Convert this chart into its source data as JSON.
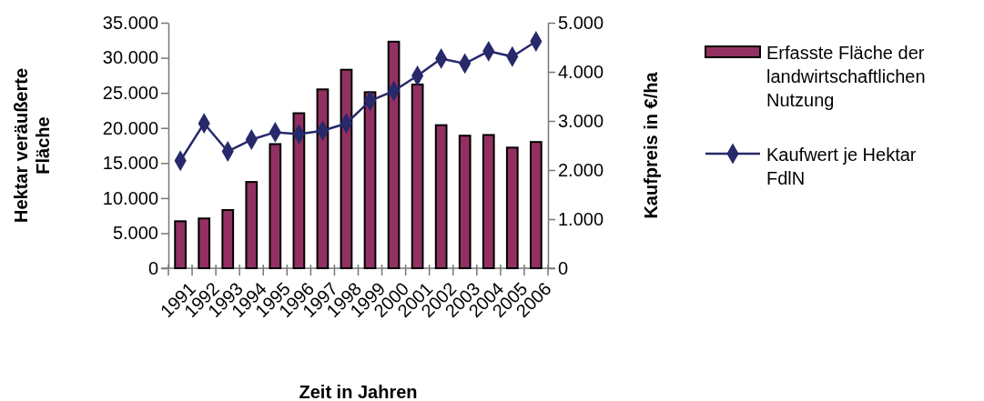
{
  "chart_data": {
    "type": "bar",
    "xlabel": "Zeit in Jahren",
    "ylabel": "Hektar veräußerte Fläche",
    "y2label": "Kaufpreis in €/ha",
    "categories": [
      "1991",
      "1992",
      "1993",
      "1994",
      "1995",
      "1996",
      "1997",
      "1998",
      "1999",
      "2000",
      "2001",
      "2002",
      "2003",
      "2004",
      "2005",
      "2006"
    ],
    "series": [
      {
        "name": "Erfasste Fläche der landwirtschaftlichen Nutzung",
        "color": "#933062",
        "values": [
          6700,
          7100,
          8300,
          12300,
          17700,
          22100,
          25500,
          28300,
          25100,
          32300,
          26200,
          20400,
          18900,
          19000,
          17200,
          18000
        ]
      },
      {
        "name": "Kaufwert je Hektar FdlN",
        "type": "line",
        "axis": "y2",
        "color": "#27296b",
        "marker": "diamond",
        "values": [
          2190,
          2950,
          2380,
          2620,
          2770,
          2730,
          2800,
          2950,
          3410,
          3610,
          3920,
          4270,
          4170,
          4420,
          4310,
          4620
        ]
      }
    ],
    "ylim": [
      0,
      35000
    ],
    "yticks": [
      {
        "value": 0,
        "label": "0"
      },
      {
        "value": 5000,
        "label": "5.000"
      },
      {
        "value": 10000,
        "label": "10.000"
      },
      {
        "value": 15000,
        "label": "15.000"
      },
      {
        "value": 20000,
        "label": "20.000"
      },
      {
        "value": 25000,
        "label": "25.000"
      },
      {
        "value": 30000,
        "label": "30.000"
      },
      {
        "value": 35000,
        "label": "35.000"
      }
    ],
    "y2lim": [
      0,
      5000
    ],
    "y2ticks": [
      {
        "value": 0,
        "label": "0"
      },
      {
        "value": 1000,
        "label": "1.000"
      },
      {
        "value": 2000,
        "label": "2.000"
      },
      {
        "value": 3000,
        "label": "3.000"
      },
      {
        "value": 4000,
        "label": "4.000"
      },
      {
        "value": 5000,
        "label": "5.000"
      }
    ],
    "grid": false,
    "legend": "right"
  }
}
